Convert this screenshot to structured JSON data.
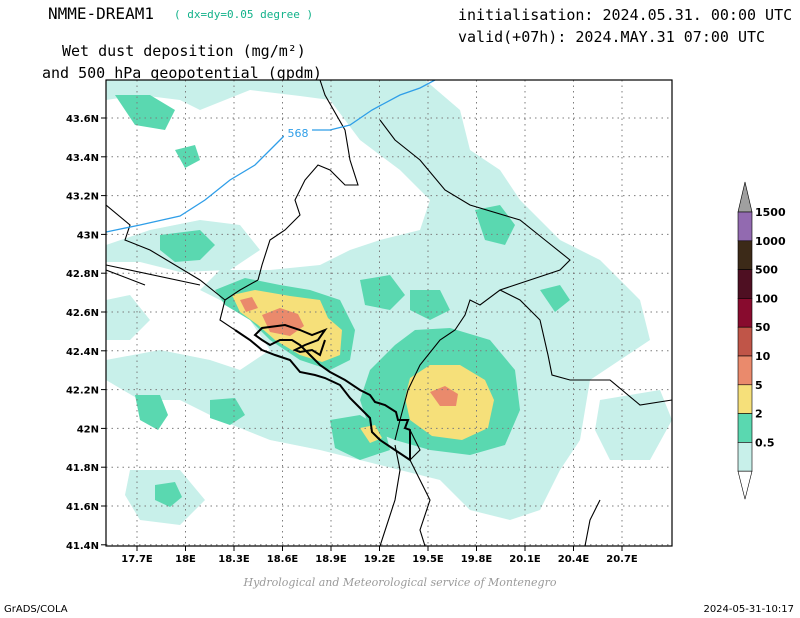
{
  "header": {
    "model": "NMME-DREAM1",
    "resolution": "( dx=dy=0.05 degree )",
    "variable_line1": "Wet dust deposition (mg/m²)",
    "variable_line2": "and 500 hPa geopotential (gpdm)",
    "initialisation": "initialisation: 2024.05.31. 00:00 UTC",
    "valid": "valid(+07h): 2024.MAY.31 07:00 UTC"
  },
  "map": {
    "lon_labels": [
      "17.7E",
      "18E",
      "18.3E",
      "18.6E",
      "18.9E",
      "19.2E",
      "19.5E",
      "19.8E",
      "20.1E",
      "20.4E",
      "20.7E"
    ],
    "lat_labels": [
      "43.6N",
      "43.4N",
      "43.2N",
      "43N",
      "42.8N",
      "42.6N",
      "42.4N",
      "42.2N",
      "42N",
      "41.8N",
      "41.6N",
      "41.4N"
    ],
    "contour_label": "568",
    "colors": {
      "c0_5": "#c8f0ea",
      "c2": "#5ad8b0",
      "c5": "#f6e07a",
      "c10": "#ea8a6c",
      "c50": "#c05548",
      "c100": "#880b2e",
      "c500": "#4e0f22",
      "c1000": "#3c2a18",
      "c1500": "#926ab0",
      "over": "#a0a0a0",
      "contour": "#2f9ee8"
    }
  },
  "legend": {
    "labels": [
      "1500",
      "1000",
      "500",
      "100",
      "50",
      "10",
      "5",
      "2",
      "0.5"
    ]
  },
  "footer": {
    "credit": "Hydrological and Meteorological service of Montenegro",
    "left": "GrADS/COLA",
    "right": "2024-05-31-10:17"
  }
}
